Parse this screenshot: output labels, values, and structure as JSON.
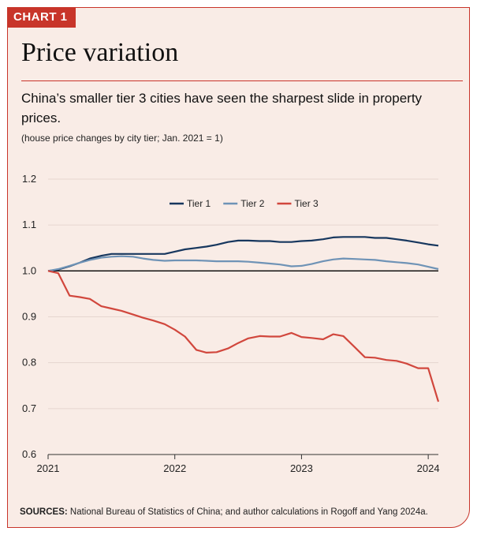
{
  "badge": "CHART 1",
  "title": "Price variation",
  "subtitle": "China’s smaller tier 3 cities have seen the sharpest slide in property prices.",
  "note": "(house price changes by city tier; Jan. 2021 = 1)",
  "source_label": "SOURCES:",
  "source_text": "National Bureau of Statistics of China; and author calculations in Rogoff and Yang 2024a.",
  "colors": {
    "accent": "#c8352a",
    "background": "#f9ece6",
    "tier1": "#17375e",
    "tier2": "#6f93b6",
    "tier3": "#d1473d"
  },
  "chart_data": {
    "type": "line",
    "x_unit": "year",
    "xlim": [
      2021.0,
      2024.08
    ],
    "ylim": [
      0.6,
      1.2
    ],
    "x_ticks": [
      {
        "value": 2021,
        "label": "2021"
      },
      {
        "value": 2022,
        "label": "2022"
      },
      {
        "value": 2023,
        "label": "2023"
      },
      {
        "value": 2024,
        "label": "2024"
      }
    ],
    "y_ticks": [
      {
        "value": 0.6,
        "label": "0.6"
      },
      {
        "value": 0.7,
        "label": "0.7"
      },
      {
        "value": 0.8,
        "label": "0.8"
      },
      {
        "value": 0.9,
        "label": "0.9"
      },
      {
        "value": 1.0,
        "label": "1.0"
      },
      {
        "value": 1.1,
        "label": "1.1"
      },
      {
        "value": 1.2,
        "label": "1.2"
      }
    ],
    "reference_line": 1.0,
    "legend_position": "top-center",
    "series": [
      {
        "name": "Tier 1",
        "color": "#17375e",
        "points": [
          [
            2021.0,
            1.0
          ],
          [
            2021.08,
            1.003
          ],
          [
            2021.17,
            1.01
          ],
          [
            2021.25,
            1.018
          ],
          [
            2021.33,
            1.027
          ],
          [
            2021.42,
            1.033
          ],
          [
            2021.5,
            1.037
          ],
          [
            2021.58,
            1.037
          ],
          [
            2021.67,
            1.037
          ],
          [
            2021.75,
            1.037
          ],
          [
            2021.83,
            1.037
          ],
          [
            2021.92,
            1.037
          ],
          [
            2022.0,
            1.042
          ],
          [
            2022.08,
            1.047
          ],
          [
            2022.17,
            1.05
          ],
          [
            2022.25,
            1.053
          ],
          [
            2022.33,
            1.057
          ],
          [
            2022.42,
            1.063
          ],
          [
            2022.5,
            1.066
          ],
          [
            2022.58,
            1.066
          ],
          [
            2022.67,
            1.065
          ],
          [
            2022.75,
            1.065
          ],
          [
            2022.83,
            1.063
          ],
          [
            2022.92,
            1.063
          ],
          [
            2023.0,
            1.065
          ],
          [
            2023.08,
            1.066
          ],
          [
            2023.17,
            1.069
          ],
          [
            2023.25,
            1.073
          ],
          [
            2023.33,
            1.074
          ],
          [
            2023.42,
            1.074
          ],
          [
            2023.5,
            1.074
          ],
          [
            2023.58,
            1.072
          ],
          [
            2023.67,
            1.072
          ],
          [
            2023.75,
            1.069
          ],
          [
            2023.83,
            1.066
          ],
          [
            2023.92,
            1.062
          ],
          [
            2024.0,
            1.058
          ],
          [
            2024.08,
            1.055
          ]
        ]
      },
      {
        "name": "Tier 2",
        "color": "#6f93b6",
        "points": [
          [
            2021.0,
            1.0
          ],
          [
            2021.08,
            1.004
          ],
          [
            2021.17,
            1.011
          ],
          [
            2021.25,
            1.018
          ],
          [
            2021.33,
            1.024
          ],
          [
            2021.42,
            1.029
          ],
          [
            2021.5,
            1.031
          ],
          [
            2021.58,
            1.032
          ],
          [
            2021.67,
            1.031
          ],
          [
            2021.75,
            1.027
          ],
          [
            2021.83,
            1.024
          ],
          [
            2021.92,
            1.022
          ],
          [
            2022.0,
            1.023
          ],
          [
            2022.08,
            1.023
          ],
          [
            2022.17,
            1.023
          ],
          [
            2022.25,
            1.022
          ],
          [
            2022.33,
            1.021
          ],
          [
            2022.42,
            1.021
          ],
          [
            2022.5,
            1.021
          ],
          [
            2022.58,
            1.02
          ],
          [
            2022.67,
            1.018
          ],
          [
            2022.75,
            1.016
          ],
          [
            2022.83,
            1.014
          ],
          [
            2022.92,
            1.01
          ],
          [
            2023.0,
            1.011
          ],
          [
            2023.08,
            1.015
          ],
          [
            2023.17,
            1.021
          ],
          [
            2023.25,
            1.025
          ],
          [
            2023.33,
            1.027
          ],
          [
            2023.42,
            1.026
          ],
          [
            2023.5,
            1.025
          ],
          [
            2023.58,
            1.024
          ],
          [
            2023.67,
            1.021
          ],
          [
            2023.75,
            1.019
          ],
          [
            2023.83,
            1.017
          ],
          [
            2023.92,
            1.014
          ],
          [
            2024.0,
            1.009
          ],
          [
            2024.08,
            1.004
          ]
        ]
      },
      {
        "name": "Tier 3",
        "color": "#d1473d",
        "points": [
          [
            2021.0,
            1.0
          ],
          [
            2021.08,
            0.995
          ],
          [
            2021.17,
            0.946
          ],
          [
            2021.25,
            0.943
          ],
          [
            2021.33,
            0.939
          ],
          [
            2021.42,
            0.923
          ],
          [
            2021.5,
            0.918
          ],
          [
            2021.58,
            0.913
          ],
          [
            2021.67,
            0.905
          ],
          [
            2021.75,
            0.898
          ],
          [
            2021.83,
            0.892
          ],
          [
            2021.92,
            0.884
          ],
          [
            2022.0,
            0.872
          ],
          [
            2022.08,
            0.857
          ],
          [
            2022.17,
            0.828
          ],
          [
            2022.25,
            0.822
          ],
          [
            2022.33,
            0.823
          ],
          [
            2022.42,
            0.831
          ],
          [
            2022.5,
            0.843
          ],
          [
            2022.58,
            0.853
          ],
          [
            2022.67,
            0.858
          ],
          [
            2022.75,
            0.857
          ],
          [
            2022.83,
            0.857
          ],
          [
            2022.92,
            0.865
          ],
          [
            2023.0,
            0.856
          ],
          [
            2023.08,
            0.854
          ],
          [
            2023.17,
            0.851
          ],
          [
            2023.25,
            0.862
          ],
          [
            2023.33,
            0.858
          ],
          [
            2023.42,
            0.834
          ],
          [
            2023.5,
            0.812
          ],
          [
            2023.58,
            0.811
          ],
          [
            2023.67,
            0.806
          ],
          [
            2023.75,
            0.804
          ],
          [
            2023.83,
            0.798
          ],
          [
            2023.92,
            0.788
          ],
          [
            2024.0,
            0.788
          ],
          [
            2024.08,
            0.715
          ]
        ]
      }
    ]
  }
}
